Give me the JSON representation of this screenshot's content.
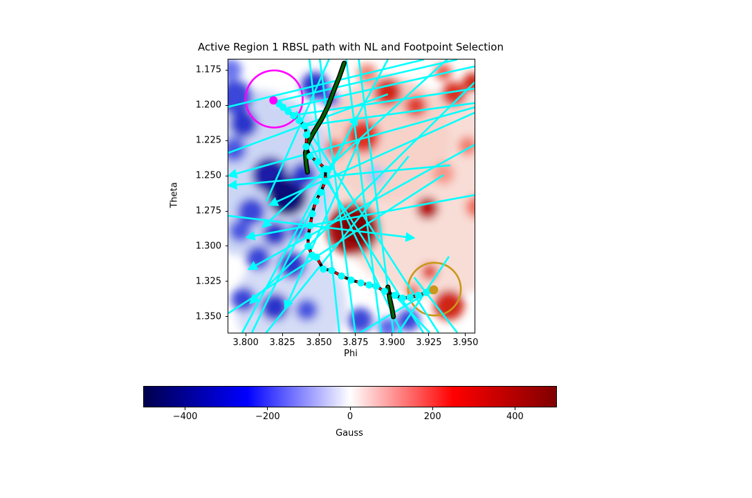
{
  "figure": {
    "background": "#ffffff"
  },
  "chart_data": {
    "type": "heatmap",
    "title": "Active Region 1 RBSL path with NL and Footpoint Selection",
    "xlabel": "Phi",
    "ylabel": "Theta",
    "xlim": [
      3.7886,
      3.9567
    ],
    "ylim": [
      1.1676,
      1.3613
    ],
    "grid": false,
    "x_ticks": [
      {
        "v": 3.8,
        "label": "3.800"
      },
      {
        "v": 3.825,
        "label": "3.825"
      },
      {
        "v": 3.85,
        "label": "3.850"
      },
      {
        "v": 3.875,
        "label": "3.875"
      },
      {
        "v": 3.9,
        "label": "3.900"
      },
      {
        "v": 3.925,
        "label": "3.925"
      },
      {
        "v": 3.95,
        "label": "3.950"
      }
    ],
    "y_ticks": [
      {
        "v": 1.175,
        "label": "1.175"
      },
      {
        "v": 1.2,
        "label": "1.200"
      },
      {
        "v": 1.225,
        "label": "1.225"
      },
      {
        "v": 1.25,
        "label": "1.250"
      },
      {
        "v": 1.275,
        "label": "1.275"
      },
      {
        "v": 1.3,
        "label": "1.300"
      },
      {
        "v": 1.325,
        "label": "1.325"
      },
      {
        "v": 1.35,
        "label": "1.350"
      }
    ],
    "colorbar": {
      "label": "Gauss",
      "vmin": -500,
      "vmax": 500,
      "colormap": "seismic",
      "gradient": [
        "#00004d",
        "#0000ff",
        "#ffffff",
        "#ff0000",
        "#800000"
      ],
      "ticks": [
        {
          "v": -400,
          "label": "−400"
        },
        {
          "v": -200,
          "label": "−200"
        },
        {
          "v": 0,
          "label": "0"
        },
        {
          "v": 200,
          "label": "200"
        },
        {
          "v": 400,
          "label": "400"
        }
      ]
    },
    "colors": {
      "vector": "#00ffff",
      "path_marker": "#00ffff",
      "path_dash": "#ff0000",
      "path_edge": "#000000",
      "neutral_line": "#006400",
      "neutral_line_edge": "#000000",
      "footpoint_start": "#ff00ff",
      "footpoint_end": "#c9981a"
    },
    "rbsl_path": {
      "points": [
        [
          3.8194,
          1.1966
        ],
        [
          3.8232,
          1.199
        ],
        [
          3.826,
          1.2015
        ],
        [
          3.8294,
          1.2044
        ],
        [
          3.8331,
          1.2074
        ],
        [
          3.8369,
          1.2108
        ],
        [
          3.8407,
          1.2147
        ],
        [
          3.8421,
          1.2211
        ],
        [
          3.8417,
          1.2294
        ],
        [
          3.8445,
          1.2363
        ],
        [
          3.8497,
          1.2402
        ],
        [
          3.8549,
          1.2451
        ],
        [
          3.8549,
          1.2539
        ],
        [
          3.8516,
          1.2618
        ],
        [
          3.8483,
          1.2681
        ],
        [
          3.8459,
          1.277
        ],
        [
          3.8445,
          1.2853
        ],
        [
          3.8431,
          1.2926
        ],
        [
          3.8431,
          1.3
        ],
        [
          3.8459,
          1.3064
        ],
        [
          3.8488,
          1.3078
        ],
        [
          3.8535,
          1.3162
        ],
        [
          3.8592,
          1.3172
        ],
        [
          3.8658,
          1.3211
        ],
        [
          3.8724,
          1.324
        ],
        [
          3.8791,
          1.326
        ],
        [
          3.8847,
          1.3275
        ],
        [
          3.8895,
          1.3284
        ],
        [
          3.8952,
          1.3319
        ],
        [
          3.9023,
          1.3348
        ],
        [
          3.9075,
          1.3368
        ],
        [
          3.9127,
          1.3363
        ],
        [
          3.9184,
          1.3348
        ],
        [
          3.9236,
          1.3328
        ],
        [
          3.9269,
          1.3314
        ],
        [
          3.9288,
          1.3309
        ]
      ]
    },
    "footpoints": {
      "start": {
        "phi": 3.8194,
        "theta": 1.1966,
        "color": "#ff00ff"
      },
      "end": {
        "phi": 3.9288,
        "theta": 1.3309,
        "color": "#c9981a"
      }
    },
    "selection_circles": [
      {
        "phi": 3.8199,
        "theta": 1.1956,
        "r": 0.0195,
        "color": "#ff00ff"
      },
      {
        "phi": 3.9293,
        "theta": 1.3304,
        "r": 0.018,
        "color": "#c9981a"
      }
    ],
    "neutral_line_segments": [
      [
        [
          3.8677,
          1.1701
        ],
        [
          3.8644,
          1.1799
        ],
        [
          3.8606,
          1.1897
        ],
        [
          3.8568,
          1.2005
        ],
        [
          3.8521,
          1.2103
        ],
        [
          3.8469,
          1.2191
        ],
        [
          3.8431,
          1.2265
        ],
        [
          3.8412,
          1.2338
        ],
        [
          3.8417,
          1.2412
        ],
        [
          3.8426,
          1.2475
        ]
      ],
      [
        [
          3.8975,
          1.3289
        ],
        [
          3.8989,
          1.3377
        ],
        [
          3.9004,
          1.3446
        ],
        [
          3.9013,
          1.35
        ]
      ]
    ],
    "vectors": [
      {
        "p": [
          [
            3.9638,
            1.202
          ],
          [
            3.817,
            1.2706
          ]
        ],
        "arrow": true
      },
      {
        "p": [
          [
            3.9638,
            1.1431
          ],
          [
            3.8123,
            1.2863
          ]
        ],
        "arrow": true
      },
      {
        "p": [
          [
            3.9638,
            1.2623
          ],
          [
            3.8014,
            1.2936
          ]
        ],
        "arrow": true
      },
      {
        "p": [
          [
            3.9638,
            1.224
          ],
          [
            3.8028,
            1.3162
          ]
        ],
        "arrow": true
      },
      {
        "p": [
          [
            3.9567,
            1.1838
          ],
          [
            3.8038,
            1.3402
          ]
        ],
        "arrow": true
      },
      {
        "p": [
          [
            3.8047,
            1.3613
          ],
          [
            3.8762,
            1.2083
          ]
        ],
        "arrow": true
      },
      {
        "p": [
          [
            3.7886,
            1.2784
          ],
          [
            3.915,
            1.2941
          ]
        ],
        "arrow": true
      },
      {
        "p": [
          [
            3.9567,
            1.2015
          ],
          [
            3.7891,
            1.25
          ]
        ],
        "arrow": true
      },
      {
        "p": [
          [
            3.9401,
            1.2426
          ],
          [
            3.7891,
            1.2569
          ]
        ],
        "arrow": true
      },
      {
        "p": [
          [
            3.8786,
            1.224
          ],
          [
            3.8275,
            1.3441
          ]
        ],
        "arrow": true
      },
      {
        "p": [
          [
            3.844,
            1.1676
          ],
          [
            3.8644,
            1.3613
          ]
        ],
        "arrow": false
      },
      {
        "p": [
          [
            3.8511,
            1.1676
          ],
          [
            3.8753,
            1.3613
          ]
        ],
        "arrow": false
      },
      {
        "p": [
          [
            3.8691,
            1.1676
          ],
          [
            3.8928,
            1.3613
          ]
        ],
        "arrow": false
      },
      {
        "p": [
          [
            3.8777,
            1.1676
          ],
          [
            3.9013,
            1.3613
          ]
        ],
        "arrow": false
      },
      {
        "p": [
          [
            3.8421,
            1.2216
          ],
          [
            3.907,
            1.3613
          ]
        ],
        "arrow": false
      },
      {
        "p": [
          [
            3.8464,
            1.2387
          ],
          [
            3.9217,
            1.3613
          ]
        ],
        "arrow": false
      },
      {
        "p": [
          [
            3.835,
            1.2044
          ],
          [
            3.9321,
            1.3613
          ]
        ],
        "arrow": false
      },
      {
        "p": [
          [
            3.7886,
            1.2012
          ],
          [
            3.9222,
            1.1676
          ]
        ],
        "arrow": false
      },
      {
        "p": [
          [
            3.8222,
            1.1971
          ],
          [
            3.9449,
            1.1676
          ]
        ],
        "arrow": false
      },
      {
        "p": [
          [
            3.8289,
            1.202
          ],
          [
            3.9567,
            1.1725
          ]
        ],
        "arrow": false
      },
      {
        "p": [
          [
            3.8346,
            1.2069
          ],
          [
            3.9567,
            1.1882
          ]
        ],
        "arrow": false
      },
      {
        "p": [
          [
            3.8393,
            1.2147
          ],
          [
            3.9567,
            1.1985
          ]
        ],
        "arrow": false
      },
      {
        "p": [
          [
            3.8573,
            1.1676
          ],
          [
            3.8147,
            1.2681
          ]
        ],
        "arrow": false
      },
      {
        "p": [
          [
            3.8975,
            1.1676
          ],
          [
            3.7981,
            1.3613
          ]
        ],
        "arrow": false
      },
      {
        "p": [
          [
            3.9392,
            1.3073
          ],
          [
            3.9046,
            1.3613
          ]
        ],
        "arrow": false
      },
      {
        "p": [
          [
            3.9155,
            1.3221
          ],
          [
            3.9449,
            1.3613
          ]
        ],
        "arrow": false
      },
      {
        "p": [
          [
            3.7886,
            1.3475
          ],
          [
            3.9354,
            1.2495
          ]
        ],
        "arrow": false
      },
      {
        "p": [
          [
            3.9269,
            1.3314
          ],
          [
            3.8786,
            1.3613
          ]
        ],
        "arrow": false
      },
      {
        "p": [
          [
            3.9023,
            1.3348
          ],
          [
            3.926,
            1.3613
          ]
        ],
        "arrow": false
      },
      {
        "p": [
          [
            3.7886,
            1.2338
          ],
          [
            3.8975,
            1.1922
          ]
        ],
        "arrow": false
      },
      {
        "p": [
          [
            3.8137,
            1.3623
          ],
          [
            3.9117,
            1.2362
          ]
        ],
        "arrow": false
      }
    ],
    "field_blobs": [
      [
        3.806,
        1.2485,
        0.0568,
        "#ccd6f4"
      ],
      [
        3.9307,
        1.2632,
        0.071,
        "#f8ddd6"
      ],
      [
        3.8975,
        1.224,
        0.0426,
        "#f6d2c9"
      ],
      [
        3.8312,
        1.3417,
        0.0379,
        "#d4dcf6"
      ],
      [
        3.7934,
        1.1946,
        0.0118,
        "#3a46d8"
      ],
      [
        3.7991,
        1.2132,
        0.0095,
        "#2a36cc"
      ],
      [
        3.7924,
        1.2314,
        0.0085,
        "#4a56e0"
      ],
      [
        3.817,
        1.2495,
        0.0123,
        "#1a1aa8"
      ],
      [
        3.8289,
        1.2647,
        0.0133,
        "#0a0a78"
      ],
      [
        3.8398,
        1.2495,
        0.0085,
        "#2a36cc"
      ],
      [
        3.8043,
        1.2755,
        0.0095,
        "#3a46d8"
      ],
      [
        3.7967,
        1.2892,
        0.0076,
        "#4a56e0"
      ],
      [
        3.8204,
        1.2912,
        0.0085,
        "#2a36cc"
      ],
      [
        3.8369,
        1.2887,
        0.0066,
        "#3a46d8"
      ],
      [
        3.809,
        1.3083,
        0.0085,
        "#3a46d8"
      ],
      [
        3.8322,
        1.3132,
        0.0095,
        "#2a36cc"
      ],
      [
        3.7991,
        1.3377,
        0.0085,
        "#3a46d8"
      ],
      [
        3.8204,
        1.3431,
        0.0095,
        "#2a36cc"
      ],
      [
        3.8421,
        1.3451,
        0.0076,
        "#4a56e0"
      ],
      [
        3.8786,
        1.3525,
        0.0085,
        "#3a46d8"
      ],
      [
        3.8975,
        1.3574,
        0.0066,
        "#5a66e8"
      ],
      [
        3.8478,
        1.1863,
        0.0095,
        "#2a36cc"
      ],
      [
        3.8587,
        1.1956,
        0.0057,
        "#4a56e0"
      ],
      [
        3.7901,
        1.175,
        0.0076,
        "#6a76ee"
      ],
      [
        3.889,
        1.2495,
        0.0066,
        "#b6c0ee"
      ],
      [
        3.9117,
        1.3525,
        0.0076,
        "#3a46d8"
      ],
      [
        3.8739,
        1.2877,
        0.018,
        "#a50f0f"
      ],
      [
        3.8753,
        1.2867,
        0.0104,
        "#7f0000"
      ],
      [
        3.8805,
        1.2221,
        0.0114,
        "#e03020"
      ],
      [
        3.8975,
        1.1907,
        0.0095,
        "#d02818"
      ],
      [
        3.9165,
        1.2005,
        0.0076,
        "#e04030"
      ],
      [
        3.9425,
        1.1922,
        0.0085,
        "#d83020"
      ],
      [
        3.9553,
        1.1838,
        0.0066,
        "#d02818"
      ],
      [
        3.9354,
        1.1765,
        0.0057,
        "#e85848"
      ],
      [
        3.8611,
        1.2309,
        0.0062,
        "#e84838"
      ],
      [
        3.9245,
        1.273,
        0.0076,
        "#b81010"
      ],
      [
        3.9392,
        1.3417,
        0.0104,
        "#d02818"
      ],
      [
        3.926,
        1.3181,
        0.0057,
        "#e04838"
      ],
      [
        3.9581,
        1.2721,
        0.0076,
        "#f07060"
      ],
      [
        3.9146,
        1.3319,
        0.0047,
        "#e85848"
      ],
      [
        3.8833,
        1.1775,
        0.0066,
        "#f08070"
      ],
      [
        3.952,
        1.2289,
        0.0066,
        "#f08070"
      ],
      [
        3.9354,
        1.2485,
        0.0076,
        "#f4998c"
      ]
    ]
  }
}
